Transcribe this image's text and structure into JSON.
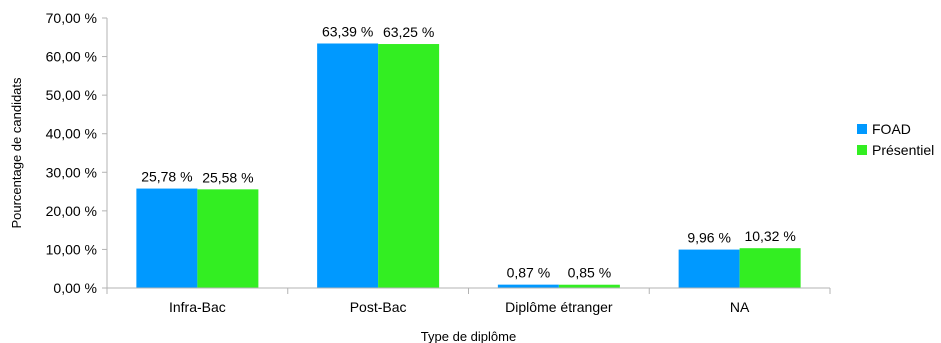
{
  "chart_data": {
    "type": "bar",
    "xlabel": "Type de diplôme",
    "ylabel": "Pourcentage de candidats",
    "ylim": [
      0,
      70
    ],
    "yticks": [
      0,
      10,
      20,
      30,
      40,
      50,
      60,
      70
    ],
    "ytick_labels": [
      "0,00 %",
      "10,00 %",
      "20,00 %",
      "30,00 %",
      "40,00 %",
      "50,00 %",
      "60,00 %",
      "70,00 %"
    ],
    "categories": [
      "Infra-Bac",
      "Post-Bac",
      "Diplôme étranger",
      "NA"
    ],
    "series": [
      {
        "name": "FOAD",
        "color": "#0099ff",
        "values": [
          25.78,
          63.39,
          0.87,
          9.96
        ],
        "labels": [
          "25,78 %",
          "63,39 %",
          "0,87 %",
          "9,96 %"
        ]
      },
      {
        "name": "Présentiel",
        "color": "#33ee22",
        "values": [
          25.58,
          63.25,
          0.85,
          10.32
        ],
        "labels": [
          "25,58 %",
          "63,25 %",
          "0,85 %",
          "10,32 %"
        ]
      }
    ],
    "grid": false,
    "legend": "right"
  }
}
